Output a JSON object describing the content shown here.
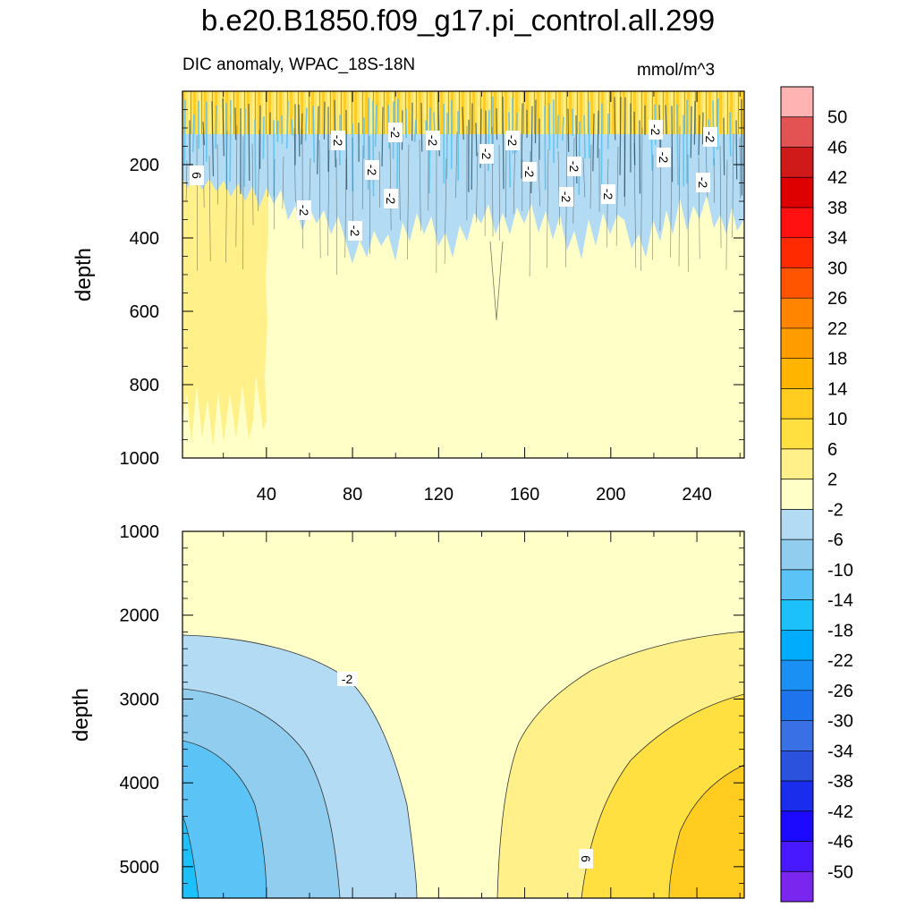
{
  "chart_data": {
    "type": "heatmap",
    "title": "b.e20.B1850.f09_g17.pi_control.all.299",
    "subtitle": "DIC anomaly, WPAC_18S-18N",
    "units": "mmol/m^3",
    "ylabel": "depth",
    "upper_panel": {
      "xlim": [
        1,
        262
      ],
      "ylim": [
        1000,
        0
      ],
      "x_ticks": [
        40,
        80,
        120,
        160,
        200,
        240
      ],
      "y_ticks": [
        200,
        400,
        600,
        800,
        1000
      ],
      "contour_labels": [
        "6",
        "-2",
        "-2",
        "-2",
        "-2",
        "-2",
        "-2",
        "-2",
        "-2",
        "-2",
        "-2",
        "-2",
        "-2",
        "-2",
        "-2",
        "-2",
        "-2",
        "-2"
      ]
    },
    "lower_panel": {
      "xlim": [
        1,
        262
      ],
      "ylim": [
        5375,
        1000
      ],
      "y_ticks": [
        1000,
        2000,
        3000,
        4000,
        5000
      ],
      "contour_labels": [
        "-2",
        "6"
      ],
      "field": {
        "x": [
          1,
          40,
          80,
          110,
          130,
          150,
          190,
          230,
          262
        ],
        "contours": [
          {
            "level": "-2",
            "depth_start": 2250,
            "side": "left"
          },
          {
            "level": "-6",
            "depth_start": 2850,
            "side": "left"
          },
          {
            "level": "-10",
            "depth_start": 3500,
            "side": "left"
          },
          {
            "level": "-14",
            "depth_start": 4400,
            "side": "left"
          },
          {
            "level": "2",
            "depth_start": 2200,
            "side": "right"
          },
          {
            "level": "6",
            "depth_start": 2950,
            "side": "right"
          },
          {
            "level": "10",
            "depth_start": 3850,
            "side": "right"
          }
        ]
      }
    },
    "colorbar": {
      "levels": [
        "50",
        "46",
        "42",
        "38",
        "34",
        "30",
        "26",
        "22",
        "18",
        "14",
        "10",
        "6",
        "2",
        "-2",
        "-6",
        "-10",
        "-14",
        "-18",
        "-22",
        "-26",
        "-30",
        "-34",
        "-38",
        "-42",
        "-46",
        "-50"
      ],
      "colors": [
        "#ffb3b3",
        "#e35353",
        "#d01a1a",
        "#de0000",
        "#ff1111",
        "#ff2a00",
        "#ff5500",
        "#ff8400",
        "#ff9d00",
        "#ffb400",
        "#ffcc1f",
        "#ffe040",
        "#fff08a",
        "#ffffc8",
        "#b3dcf4",
        "#90cdee",
        "#5bc3f5",
        "#1cc0fb",
        "#00acfb",
        "#1a8ff4",
        "#1e74ec",
        "#3a70e6",
        "#2a52dc",
        "#1a2cec",
        "#1c0aff",
        "#4818ff",
        "#7a26ee"
      ]
    }
  }
}
